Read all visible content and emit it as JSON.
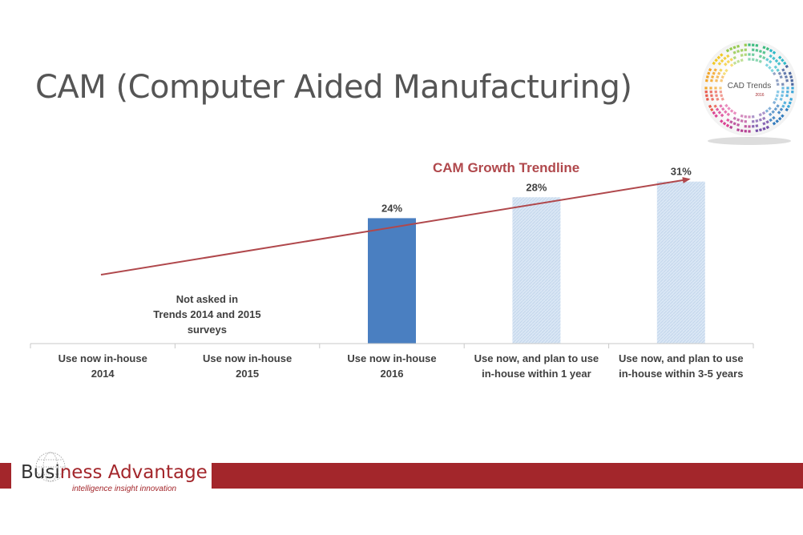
{
  "slide": {
    "title": "CAM (Computer Aided Manufacturing)"
  },
  "badge": {
    "line1": "CAD Trends",
    "line2": "2016"
  },
  "brand": {
    "name_part1": "Busi",
    "name_part2": "ness Advantage",
    "tagline": "intelligence  insight  innovation",
    "color": "#a3262b"
  },
  "chart_data": {
    "type": "bar",
    "title": "CAM Growth Trendline",
    "categories": [
      [
        "Use now in-house",
        "2014"
      ],
      [
        "Use now in-house",
        "2015"
      ],
      [
        "Use now in-house",
        "2016"
      ],
      [
        "Use now, and plan to use",
        "in-house within 1 year"
      ],
      [
        "Use now, and plan to use",
        "in-house within 3-5 years"
      ]
    ],
    "values": [
      null,
      null,
      24,
      28,
      31
    ],
    "value_labels": [
      "",
      "",
      "24%",
      "28%",
      "31%"
    ],
    "bar_styles": [
      "none",
      "none",
      "solid",
      "hatched",
      "hatched"
    ],
    "ylim": [
      0,
      40
    ],
    "annotation": [
      "Not asked in",
      "Trends 2014 and 2015",
      "surveys"
    ],
    "trendline": true,
    "colors": {
      "solid_bar": "#4a7fc1",
      "hatched_bar": "#d6e4f3",
      "trendline": "#b0484c",
      "axis": "#c9c9c9",
      "label_text": "#404040"
    }
  }
}
